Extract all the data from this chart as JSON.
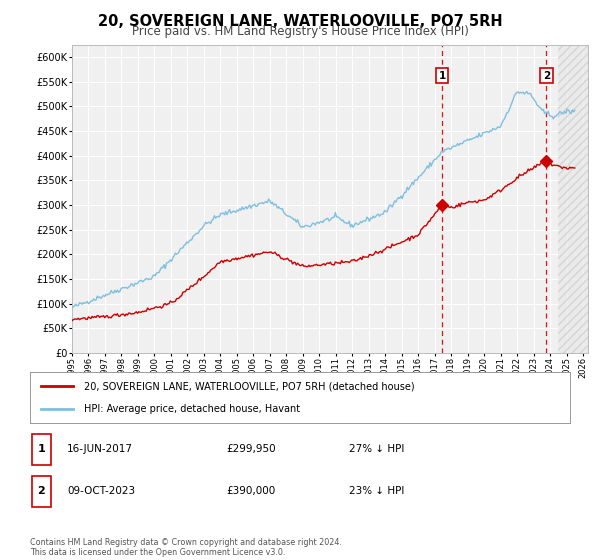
{
  "title": "20, SOVEREIGN LANE, WATERLOOVILLE, PO7 5RH",
  "subtitle": "Price paid vs. HM Land Registry's House Price Index (HPI)",
  "title_fontsize": 10.5,
  "subtitle_fontsize": 8.5,
  "ylabel_ticks": [
    "£0",
    "£50K",
    "£100K",
    "£150K",
    "£200K",
    "£250K",
    "£300K",
    "£350K",
    "£400K",
    "£450K",
    "£500K",
    "£550K",
    "£600K"
  ],
  "ytick_values": [
    0,
    50000,
    100000,
    150000,
    200000,
    250000,
    300000,
    350000,
    400000,
    450000,
    500000,
    550000,
    600000
  ],
  "ylim": [
    0,
    625000
  ],
  "xlim_start": 1995.0,
  "xlim_end": 2026.3,
  "future_start": 2024.5,
  "xtick_years": [
    1995,
    1996,
    1997,
    1998,
    1999,
    2000,
    2001,
    2002,
    2003,
    2004,
    2005,
    2006,
    2007,
    2008,
    2009,
    2010,
    2011,
    2012,
    2013,
    2014,
    2015,
    2016,
    2017,
    2018,
    2019,
    2020,
    2021,
    2022,
    2023,
    2024,
    2025,
    2026
  ],
  "hpi_color": "#7fbfdf",
  "price_color": "#cc0000",
  "vline_color": "#cc0000",
  "vline_style": "--",
  "transaction1_year": 2017.46,
  "transaction1_price": 299950,
  "transaction1_label": "1",
  "transaction2_year": 2023.77,
  "transaction2_price": 390000,
  "transaction2_label": "2",
  "legend_label_red": "20, SOVEREIGN LANE, WATERLOOVILLE, PO7 5RH (detached house)",
  "legend_label_blue": "HPI: Average price, detached house, Havant",
  "info1_num": "1",
  "info1_date": "16-JUN-2017",
  "info1_price": "£299,950",
  "info1_hpi": "27% ↓ HPI",
  "info2_num": "2",
  "info2_date": "09-OCT-2023",
  "info2_price": "£390,000",
  "info2_hpi": "23% ↓ HPI",
  "copyright_text": "Contains HM Land Registry data © Crown copyright and database right 2024.\nThis data is licensed under the Open Government Licence v3.0.",
  "bg_color": "#ffffff",
  "plot_bg_color": "#f0f0f0",
  "grid_color": "#ffffff"
}
